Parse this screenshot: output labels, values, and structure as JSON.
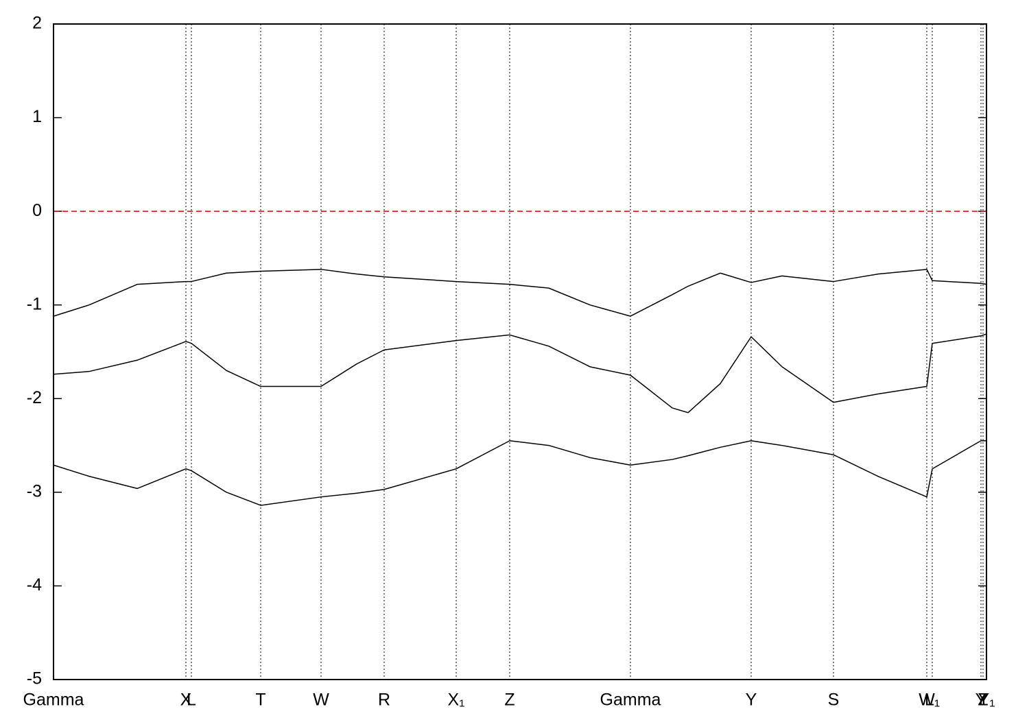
{
  "chart_data": {
    "type": "line",
    "x": [
      0,
      0.52,
      1.22,
      1.93,
      2.01,
      2.52,
      3.02,
      3.9,
      4.42,
      4.82,
      5.87,
      6.65,
      7.22,
      7.82,
      8.41,
      9.02,
      9.25,
      9.72,
      10.17,
      10.62,
      11.37,
      12.02,
      12.73,
      12.81,
      13.52,
      13.6
    ],
    "series": [
      {
        "color": "#000000",
        "values": [
          -1.12,
          -1.0,
          -0.78,
          -0.75,
          -0.75,
          -0.66,
          -0.64,
          -0.62,
          -0.67,
          -0.7,
          -0.75,
          -0.78,
          -0.82,
          -1.0,
          -1.12,
          -0.89,
          -0.8,
          -0.66,
          -0.76,
          -0.69,
          -0.75,
          -0.67,
          -0.62,
          -0.74,
          -0.77,
          -0.78
        ]
      },
      {
        "color": "#000000",
        "values": [
          -1.74,
          -1.71,
          -1.59,
          -1.39,
          -1.41,
          -1.7,
          -1.87,
          -1.87,
          -1.63,
          -1.48,
          -1.38,
          -1.32,
          -1.44,
          -1.66,
          -1.75,
          -2.1,
          -2.15,
          -1.84,
          -1.34,
          -1.66,
          -2.04,
          -1.95,
          -1.87,
          -1.41,
          -1.33,
          -1.31
        ]
      },
      {
        "color": "#000000",
        "values": [
          -2.71,
          -2.83,
          -2.96,
          -2.75,
          -2.77,
          -3.0,
          -3.14,
          -3.05,
          -3.01,
          -2.97,
          -2.75,
          -2.45,
          -2.5,
          -2.63,
          -2.71,
          -2.65,
          -2.61,
          -2.52,
          -2.45,
          -2.5,
          -2.6,
          -2.83,
          -3.05,
          -2.75,
          -2.45,
          -2.45
        ]
      }
    ],
    "xlim": [
      0,
      13.6
    ],
    "xticks": [
      {
        "value": 0,
        "label": "Gamma"
      },
      {
        "value": 1.93,
        "label": "X"
      },
      {
        "value": 2.01,
        "label": "L"
      },
      {
        "value": 3.02,
        "label": "T"
      },
      {
        "value": 3.9,
        "label": "W"
      },
      {
        "value": 4.82,
        "label": "R"
      },
      {
        "value": 5.87,
        "label": "X₁"
      },
      {
        "value": 6.65,
        "label": "Z"
      },
      {
        "value": 8.41,
        "label": "Gamma"
      },
      {
        "value": 10.17,
        "label": "Y"
      },
      {
        "value": 11.37,
        "label": "S"
      },
      {
        "value": 12.73,
        "label": "W"
      },
      {
        "value": 12.81,
        "label": "L₁"
      },
      {
        "value": 13.52,
        "label": "Y"
      },
      {
        "value": 13.55,
        "label": "Z"
      },
      {
        "value": 13.6,
        "label": "Y₁"
      }
    ],
    "ylim": [
      -5,
      2
    ],
    "yticks": [
      -5,
      -4,
      -3,
      -2,
      -1,
      0,
      1,
      2
    ],
    "x_grid": true,
    "reference_line": {
      "value": 0,
      "color": "#e00000"
    }
  }
}
